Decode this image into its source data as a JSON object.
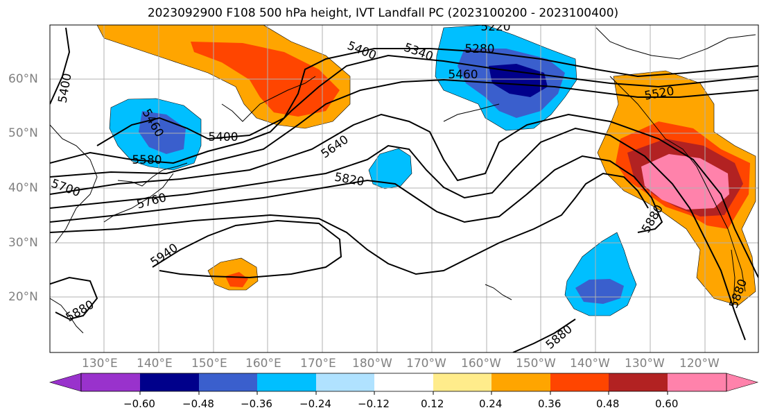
{
  "title": "2023092900 F108 500 hPa height, IVT Landfall PC (2023100200 - 2023100400)",
  "lat_labels": [
    "60°N",
    "50°N",
    "40°N",
    "30°N",
    "20°N"
  ],
  "lon_labels": [
    "130°E",
    "140°E",
    "150°E",
    "160°E",
    "170°E",
    "180°W",
    "170°W",
    "160°W",
    "150°W",
    "140°W",
    "130°W",
    "120°W"
  ],
  "contour_labels": [
    {
      "text": "5400",
      "note": "NW"
    },
    {
      "text": "5400",
      "note": "north"
    },
    {
      "text": "5220",
      "note": "north"
    },
    {
      "text": "5340",
      "note": "north"
    },
    {
      "text": "5280",
      "note": "north"
    },
    {
      "text": "5460",
      "note": "north"
    },
    {
      "text": "5460",
      "note": "Sea of Okhotsk"
    },
    {
      "text": "5400",
      "note": "Kamchatka"
    },
    {
      "text": "5580",
      "note": "Japan"
    },
    {
      "text": "5640",
      "note": "central"
    },
    {
      "text": "5700",
      "note": "west"
    },
    {
      "text": "5760",
      "note": "west"
    },
    {
      "text": "5820",
      "note": "central"
    },
    {
      "text": "5520",
      "note": "NE"
    },
    {
      "text": "5880",
      "note": "east"
    },
    {
      "text": "5940",
      "note": "southwest"
    },
    {
      "text": "5880",
      "note": "southwest"
    },
    {
      "text": "5880",
      "note": "south"
    },
    {
      "text": "5880",
      "note": "southeast"
    }
  ],
  "colorbar": {
    "ticks": [
      "−0.60",
      "−0.48",
      "−0.36",
      "−0.24",
      "−0.12",
      "0.12",
      "0.24",
      "0.36",
      "0.48",
      "0.60"
    ],
    "colors": [
      "#9932cc",
      "#00008b",
      "#3a5fcd",
      "#00bfff",
      "#b0e2ff",
      "#ffffff",
      "#ffec8b",
      "#ffa500",
      "#ff4500",
      "#b22222",
      "#ff82ab"
    ]
  }
}
